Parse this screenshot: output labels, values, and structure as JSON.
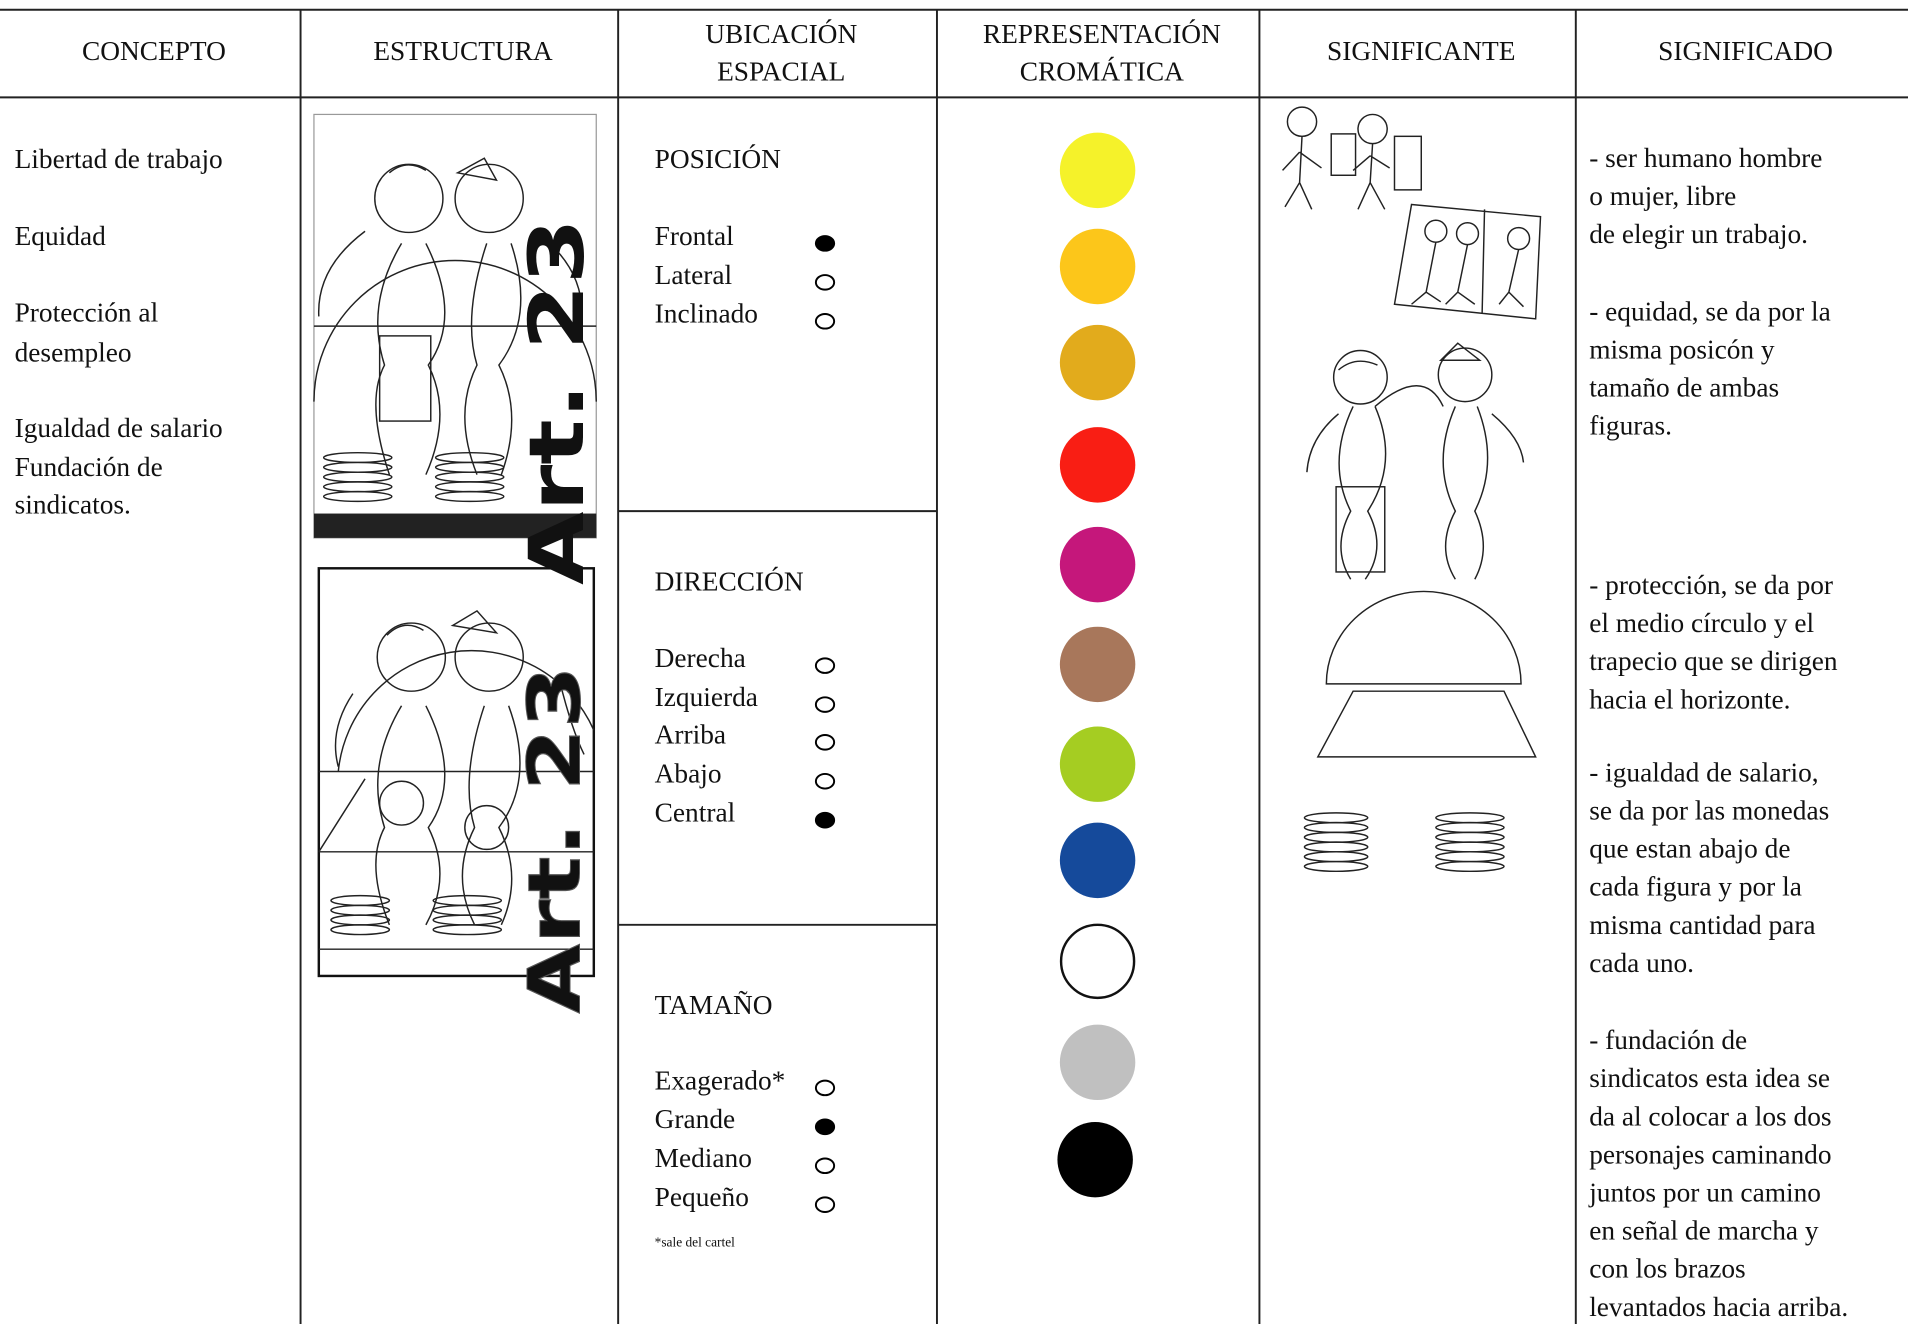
{
  "header": {
    "columns": [
      [
        "CONCEPTO"
      ],
      [
        "ESTRUCTURA"
      ],
      [
        "UBICACIÓN",
        "ESPACIAL"
      ],
      [
        "REPRESENTACIÓN",
        "CROMÁTICA"
      ],
      [
        "SIGNIFICANTE"
      ],
      [
        "SIGNIFICADO"
      ]
    ]
  },
  "concepto": {
    "lines": [
      "Libertad de trabajo",
      "Equidad",
      "Protección al",
      "desempleo",
      "Igualdad de salario",
      "Fundación de",
      "sindicatos."
    ]
  },
  "estructura": {
    "labels": [
      "Art. 23",
      "Art. 23"
    ]
  },
  "ubicacion": {
    "sections": [
      {
        "title": "POSICIÓN",
        "options": [
          {
            "label": "Frontal",
            "selected": true
          },
          {
            "label": "Lateral",
            "selected": false
          },
          {
            "label": "Inclinado",
            "selected": false
          }
        ]
      },
      {
        "title": "DIRECCIÓN",
        "options": [
          {
            "label": "Derecha",
            "selected": false
          },
          {
            "label": "Izquierda",
            "selected": false
          },
          {
            "label": "Arriba",
            "selected": false
          },
          {
            "label": "Abajo",
            "selected": false
          },
          {
            "label": "Central",
            "selected": true
          }
        ]
      },
      {
        "title": "TAMAÑO",
        "options": [
          {
            "label": "Exagerado*",
            "selected": false
          },
          {
            "label": "Grande",
            "selected": true
          },
          {
            "label": "Mediano",
            "selected": false
          },
          {
            "label": "Pequeño",
            "selected": false
          }
        ],
        "note": "*sale del cartel"
      }
    ]
  },
  "significado": {
    "paragraphs": [
      [
        "- ser humano hombre",
        "o mujer, libre",
        "de elegir un trabajo."
      ],
      [
        "- equidad, se da por la",
        "misma posicón y",
        "tamaño de ambas",
        "figuras."
      ],
      [
        "- protección, se da por",
        "el medio círculo y el",
        "trapecio que se dirigen",
        "hacia el horizonte."
      ],
      [
        "- igualdad de salario,",
        "se da por las monedas",
        "que estan abajo de",
        "cada figura y por la",
        "misma cantidad  para",
        "cada uno."
      ],
      [
        "- fundación de",
        "sindicatos esta idea se",
        "da al colocar a los dos",
        "personajes caminando",
        "juntos por un camino",
        "en señal de marcha y",
        "con los brazos",
        "levantados hacia arriba."
      ]
    ]
  }
}
